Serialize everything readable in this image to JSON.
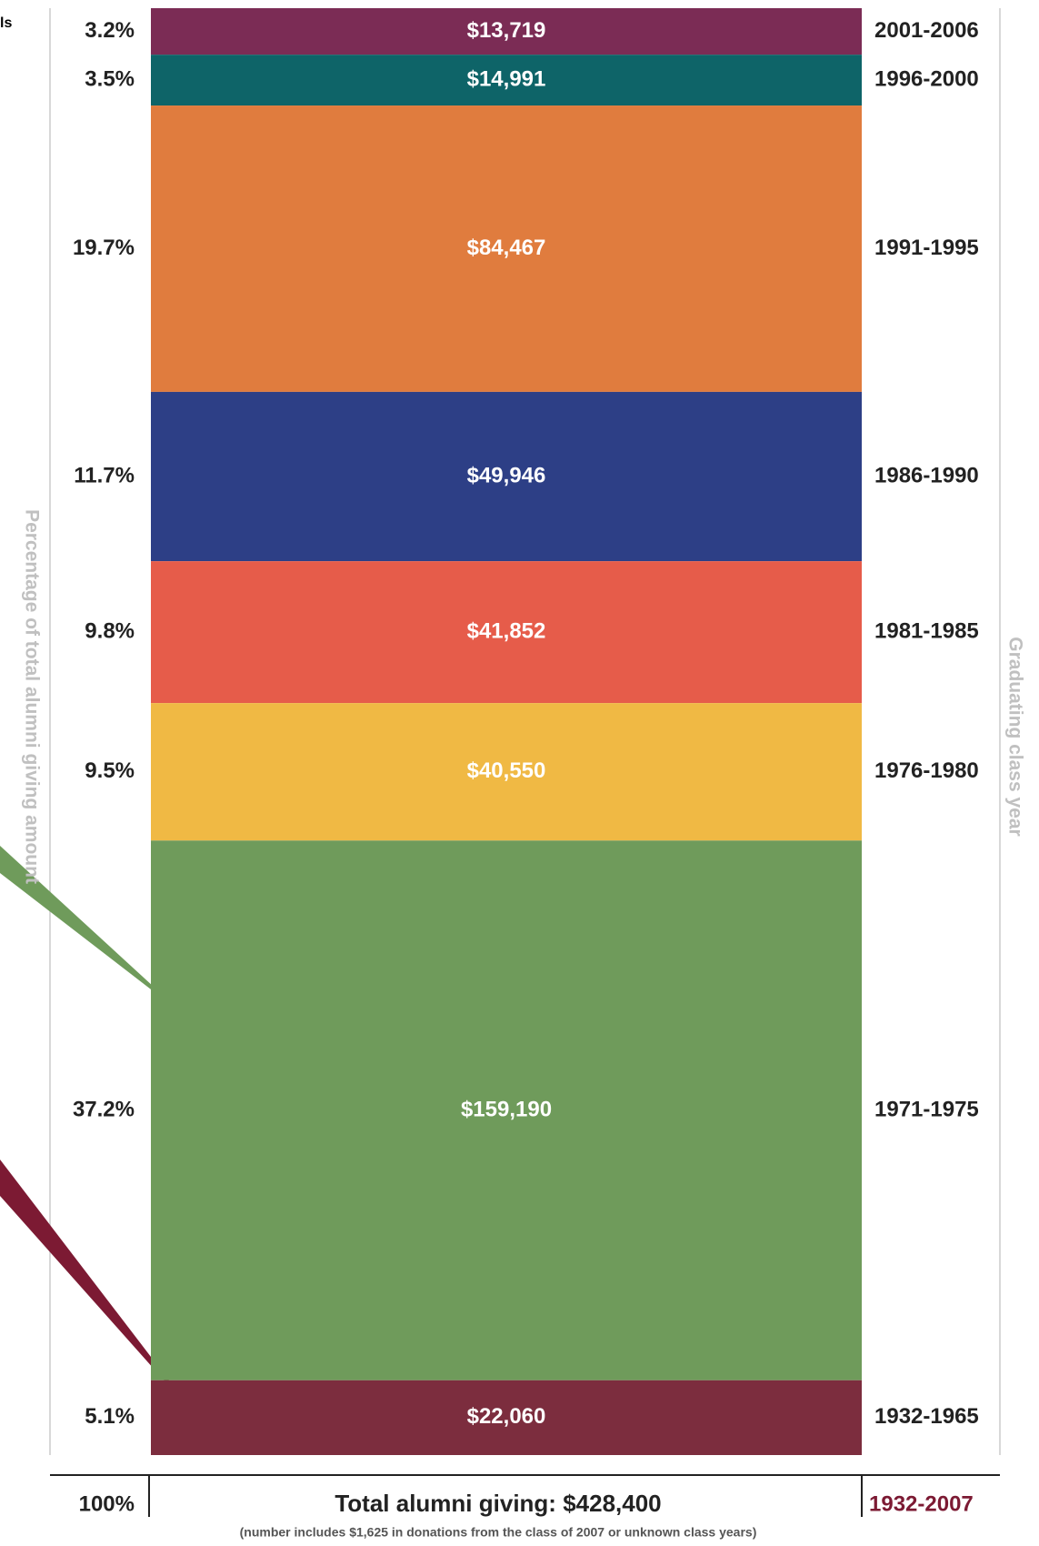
{
  "fragment": "ls",
  "chart_data": {
    "type": "stacked-column",
    "y_title": "Percentage of total alumni giving amount",
    "y2_title": "Graduating class year",
    "categories": [
      "2001-2006",
      "1996-2000",
      "1991-1995",
      "1986-1990",
      "1981-1985",
      "1976-1980",
      "1971-1975",
      "1932-1965"
    ],
    "values": [
      13719,
      14991,
      84467,
      49946,
      41852,
      40550,
      159190,
      22060
    ],
    "value_labels": [
      "$13,719",
      "$14,991",
      "$84,467",
      "$49,946",
      "$41,852",
      "$40,550",
      "$159,190",
      "$22,060"
    ],
    "percents": [
      3.2,
      3.5,
      19.7,
      11.7,
      9.8,
      9.5,
      37.2,
      5.1
    ],
    "percent_labels": [
      "3.2%",
      "3.5%",
      "19.7%",
      "11.7%",
      "9.8%",
      "9.5%",
      "37.2%",
      "5.1%"
    ],
    "colors": [
      "#7b2c55",
      "#0e6468",
      "#e07c3e",
      "#2d3f86",
      "#e65c4a",
      "#f0b944",
      "#6f9b5b",
      "#7c2d3e"
    ],
    "total_percent": "100%",
    "total_label": "Total alumni giving: $428,400",
    "total_years": "1932-2007",
    "note": "(number includes $1,625 in donations from the class of 2007 or unknown class years)"
  }
}
